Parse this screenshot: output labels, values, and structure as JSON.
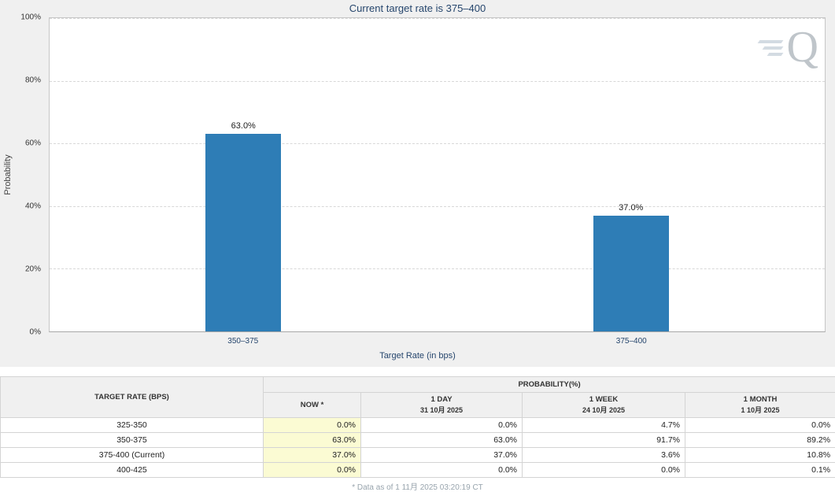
{
  "chart_data": {
    "type": "bar",
    "title": "Current target rate is 375–400",
    "categories": [
      "350–375",
      "375–400"
    ],
    "values": [
      63.0,
      37.0
    ],
    "labels": [
      "63.0%",
      "37.0%"
    ],
    "xlabel": "Target Rate (in bps)",
    "ylabel": "Probability",
    "ylim": [
      0,
      100
    ],
    "yticks": [
      "100%",
      "80%",
      "60%",
      "40%",
      "20%",
      "0%"
    ],
    "bar_color": "#2e7db6",
    "grid": "horizontal-dashed",
    "legend": "none"
  },
  "logo": {
    "letter": "Q"
  },
  "table": {
    "row_header": "TARGET RATE (BPS)",
    "group_header": "PROBABILITY(%)",
    "columns": [
      {
        "label": "NOW *",
        "sub": ""
      },
      {
        "label": "1 DAY",
        "sub": "31 10月 2025"
      },
      {
        "label": "1 WEEK",
        "sub": "24 10月 2025"
      },
      {
        "label": "1 MONTH",
        "sub": "1 10月 2025"
      }
    ],
    "rows": [
      {
        "rate": "325-350",
        "now": "0.0%",
        "day": "0.0%",
        "week": "4.7%",
        "month": "0.0%"
      },
      {
        "rate": "350-375",
        "now": "63.0%",
        "day": "63.0%",
        "week": "91.7%",
        "month": "89.2%"
      },
      {
        "rate": "375-400 (Current)",
        "now": "37.0%",
        "day": "37.0%",
        "week": "3.6%",
        "month": "10.8%"
      },
      {
        "rate": "400-425",
        "now": "0.0%",
        "day": "0.0%",
        "week": "0.0%",
        "month": "0.1%"
      }
    ],
    "footnote": "* Data as of 1 11月 2025 03:20:19 CT"
  }
}
